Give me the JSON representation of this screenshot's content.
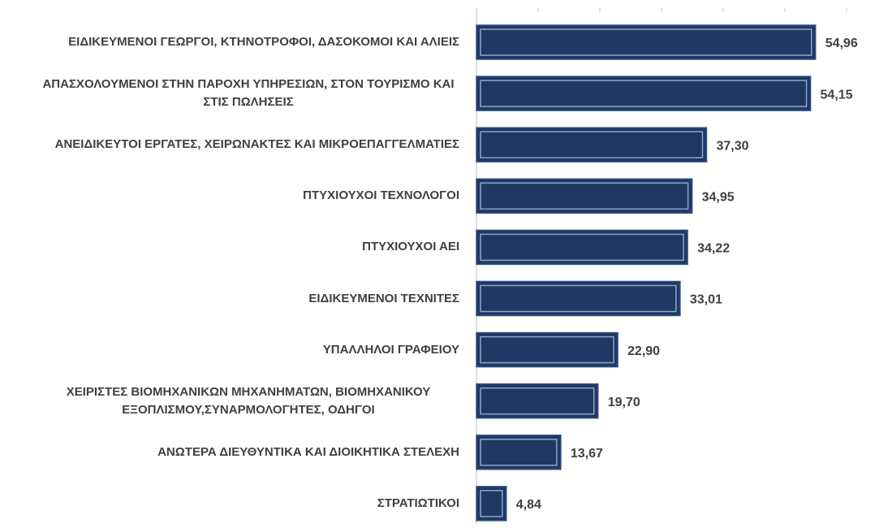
{
  "chart_data": {
    "type": "barh",
    "categories": [
      "ΕΙΔΙΚΕΥΜΕΝΟΙ ΓΕΩΡΓΟΙ, ΚΤΗΝΟΤΡΟΦΟΙ, ΔΑΣΟΚΟΜΟΙ ΚΑΙ ΑΛΙΕΙΣ",
      "ΑΠΑΣΧΟΛΟΥΜΕΝΟΙ ΣΤΗΝ ΠΑΡΟΧΗ ΥΠΗΡΕΣΙΩΝ, ΣΤΟΝ ΤΟΥΡΙΣΜΟ ΚΑΙ ΣΤΙΣ ΠΩΛΗΣΕΙΣ",
      "ΑΝΕΙΔΙΚΕΥΤΟΙ ΕΡΓΑΤΕΣ, ΧΕΙΡΩΝΑΚΤΕΣ ΚΑΙ ΜΙΚΡΟΕΠΑΓΓΕΛΜΑΤΙΕΣ",
      "ΠΤΥΧΙΟΥΧΟΙ ΤΕΧΝΟΛΟΓΟΙ",
      "ΠΤΥΧΙΟΥΧΟΙ ΑΕΙ",
      "ΕΙΔΙΚΕΥΜΕΝΟΙ ΤΕΧΝΙΤΕΣ",
      "ΥΠΑΛΛΗΛΟΙ ΓΡΑΦΕΙΟΥ",
      "ΧΕΙΡΙΣΤΕΣ ΒΙΟΜΗΧΑΝΙΚΩΝ ΜΗΧΑΝΗΜΑΤΩΝ, ΒΙΟΜΗΧΑΝΙΚΟΥ ΕΞΟΠΛΙΣΜΟΥ,ΣΥΝΑΡΜΟΛΟΓΗΤΕΣ, ΟΔΗΓΟΙ",
      "ΑΝΩΤΕΡΑ ΔΙΕΥΘΥΝΤΙΚΑ ΚΑΙ ΔΙΟΙΚΗΤΙΚΑ ΣΤΕΛΕΧΗ",
      "ΣΤΡΑΤΙΩΤΙΚΟΙ"
    ],
    "values": [
      54.96,
      54.15,
      37.3,
      34.95,
      34.22,
      33.01,
      22.9,
      19.7,
      13.67,
      4.84
    ],
    "value_labels": [
      "54,96",
      "54,15",
      "37,30",
      "34,95",
      "34,22",
      "33,01",
      "22,90",
      "19,70",
      "13,67",
      "4,84"
    ],
    "color": "#1f3864",
    "xlim": [
      0,
      60
    ],
    "xticks": [
      0,
      10,
      20,
      30,
      40,
      50,
      60
    ]
  }
}
